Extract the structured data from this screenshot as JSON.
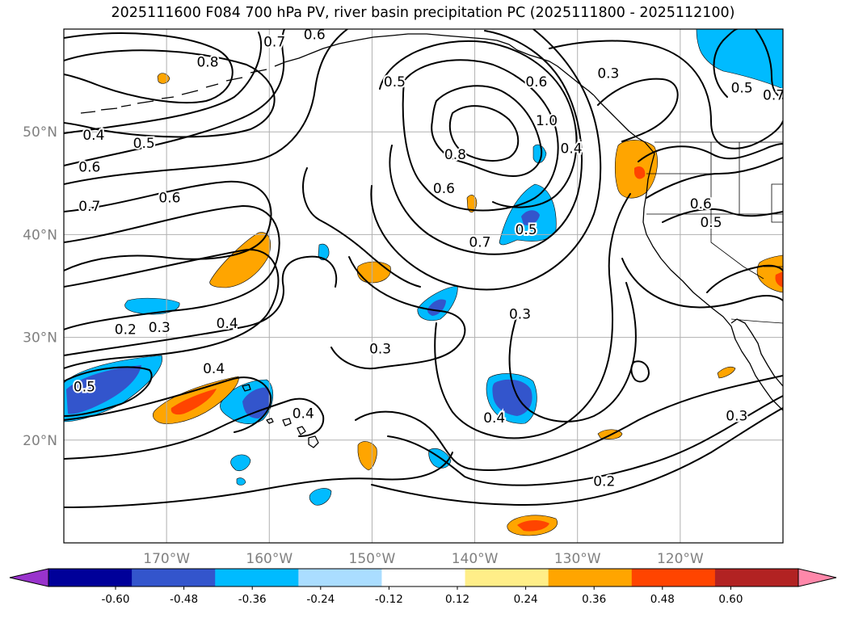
{
  "title": "2025111600 F084 700 hPa PV, river basin precipitation PC (2025111800 - 2025112100)",
  "map": {
    "lon_range": [
      -180,
      -110
    ],
    "lat_range": [
      10,
      60
    ],
    "lat_ticks": [
      {
        "lat": 50,
        "label": "50°N"
      },
      {
        "lat": 40,
        "label": "40°N"
      },
      {
        "lat": 30,
        "label": "30°N"
      },
      {
        "lat": 20,
        "label": "20°N"
      }
    ],
    "lon_ticks": [
      {
        "lon": -170,
        "label": "170°W"
      },
      {
        "lon": -160,
        "label": "160°W"
      },
      {
        "lon": -150,
        "label": "150°W"
      },
      {
        "lon": -140,
        "label": "140°W"
      },
      {
        "lon": -130,
        "label": "130°W"
      },
      {
        "lon": -120,
        "label": "120°W"
      }
    ],
    "grid": true
  },
  "colorbar": {
    "levels": [
      "-0.60",
      "-0.48",
      "-0.36",
      "-0.24",
      "-0.12",
      "0.12",
      "0.24",
      "0.36",
      "0.48",
      "0.60"
    ],
    "under_color": "#9933cc",
    "over_color": "#ff88aa",
    "colors": [
      "#000099",
      "#3355cc",
      "#00bbff",
      "#aaddff",
      "#ffffff",
      "#ffee88",
      "#ffa500",
      "#ff4400",
      "#b22222"
    ]
  },
  "contour_labels": [
    {
      "text": "0.8",
      "lon": -166.0,
      "lat": 56.8
    },
    {
      "text": "0.7",
      "lon": -159.5,
      "lat": 58.8
    },
    {
      "text": "0.6",
      "lon": -155.6,
      "lat": 59.5
    },
    {
      "text": "0.5",
      "lon": -147.8,
      "lat": 54.9
    },
    {
      "text": "0.6",
      "lon": -134.0,
      "lat": 54.9
    },
    {
      "text": "0.3",
      "lon": -127.0,
      "lat": 55.7
    },
    {
      "text": "0.5",
      "lon": -114.0,
      "lat": 54.3
    },
    {
      "text": "0.7",
      "lon": -110.9,
      "lat": 53.6
    },
    {
      "text": "1.0",
      "lon": -133.0,
      "lat": 51.1
    },
    {
      "text": "0.4",
      "lon": -130.6,
      "lat": 48.4
    },
    {
      "text": "0.4",
      "lon": -177.1,
      "lat": 49.7
    },
    {
      "text": "0.5",
      "lon": -172.2,
      "lat": 48.9
    },
    {
      "text": "0.6",
      "lon": -177.5,
      "lat": 46.6
    },
    {
      "text": "0.8",
      "lon": -141.9,
      "lat": 47.8
    },
    {
      "text": "0.6",
      "lon": -143.0,
      "lat": 44.5
    },
    {
      "text": "0.6",
      "lon": -169.7,
      "lat": 43.6
    },
    {
      "text": "0.6",
      "lon": -118.0,
      "lat": 43.0
    },
    {
      "text": "0.7",
      "lon": -177.5,
      "lat": 42.8
    },
    {
      "text": "0.5",
      "lon": -117.0,
      "lat": 41.2
    },
    {
      "text": "0.5",
      "lon": -135.0,
      "lat": 40.5
    },
    {
      "text": "0.7",
      "lon": -139.5,
      "lat": 39.3
    },
    {
      "text": "0.3",
      "lon": -135.6,
      "lat": 32.3
    },
    {
      "text": "0.2",
      "lon": -174.0,
      "lat": 30.8
    },
    {
      "text": "0.3",
      "lon": -170.7,
      "lat": 31.0
    },
    {
      "text": "0.4",
      "lon": -164.1,
      "lat": 31.4
    },
    {
      "text": "0.3",
      "lon": -149.2,
      "lat": 28.9
    },
    {
      "text": "0.4",
      "lon": -165.4,
      "lat": 27.0
    },
    {
      "text": "0.5",
      "lon": -178.0,
      "lat": 25.2
    },
    {
      "text": "0.4",
      "lon": -156.7,
      "lat": 22.6
    },
    {
      "text": "0.4",
      "lon": -138.1,
      "lat": 22.2
    },
    {
      "text": "0.3",
      "lon": -114.5,
      "lat": 22.4
    },
    {
      "text": "0.2",
      "lon": -127.4,
      "lat": 16.0
    }
  ]
}
